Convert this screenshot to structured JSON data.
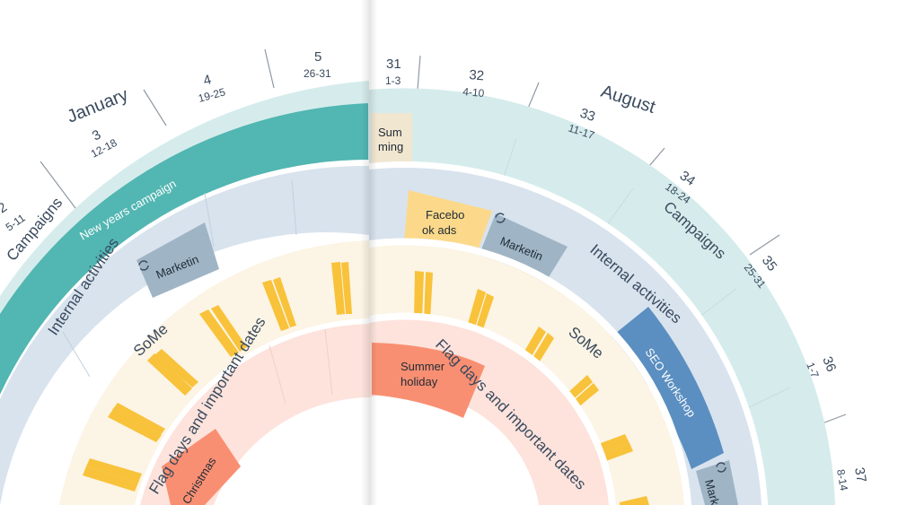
{
  "left_half": {
    "month": "January",
    "weeks": [
      {
        "number": "2",
        "range": "5-11"
      },
      {
        "number": "3",
        "range": "12-18"
      },
      {
        "number": "4",
        "range": "19-25"
      },
      {
        "number": "5",
        "range": "26-31"
      }
    ],
    "ring_labels": {
      "campaigns": "Campaigns",
      "internal": "Internal activities",
      "some": "SoMe",
      "flag_days": "Flag days and important dates"
    },
    "items": {
      "campaign": "New years campaign",
      "internal": "Marketin",
      "flag": "Christmas"
    }
  },
  "right_half": {
    "month": "August",
    "weeks": [
      {
        "number": "31",
        "range": "1-3"
      },
      {
        "number": "32",
        "range": "4-10"
      },
      {
        "number": "33",
        "range": "11-17"
      },
      {
        "number": "34",
        "range": "18-24"
      },
      {
        "number": "35",
        "range": "25-31"
      },
      {
        "number": "36",
        "range": "1-7"
      },
      {
        "number": "37",
        "range": "8-14"
      }
    ],
    "ring_labels": {
      "campaigns": "Campaigns",
      "internal": "Internal activities",
      "some": "SoMe",
      "flag_days": "Flag days and important dates"
    },
    "items": {
      "campaign": "Sum ming",
      "internal_1": "Facebo ok ads",
      "internal_2": "Marketin",
      "internal_3": "SEO Workshop",
      "internal_4": "Mark",
      "flag": "Summer holiday"
    }
  },
  "colors": {
    "campaign_ring": "#d6ecec",
    "campaign_item": "#52b6b2",
    "campaign_item_summer": "#f1e6d0",
    "internal_ring": "#d8e3ee",
    "internal_marketing": "#9fb5c5",
    "internal_facebook": "#fcd98a",
    "internal_seo": "#5b8fc1",
    "some_ring": "#fcf4e4",
    "some_bar": "#f8c23a",
    "flag_ring": "#fde3dc",
    "flag_item": "#f98f72",
    "week_lines": "#8f98a3"
  },
  "icons": {
    "repeat": "repeat-icon"
  }
}
